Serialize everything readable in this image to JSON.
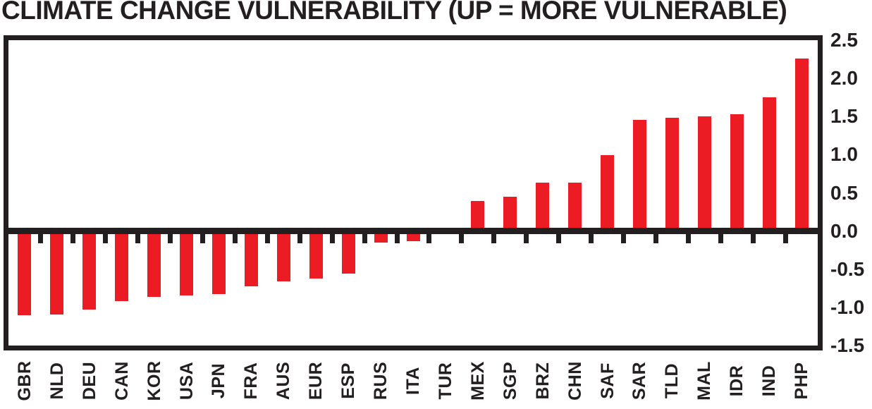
{
  "colors": {
    "bar": "#EC1C24",
    "axis": "#231F20",
    "background": "#FFFFFF"
  },
  "chart_data": {
    "type": "bar",
    "title": "CLIMATE CHANGE VULNERABILITY (UP = MORE VULNERABLE)",
    "categories": [
      "GBR",
      "NLD",
      "DEU",
      "CAN",
      "KOR",
      "USA",
      "JPN",
      "FRA",
      "AUS",
      "EUR",
      "ESP",
      "RUS",
      "ITA",
      "TUR",
      "MEX",
      "SGP",
      "BRZ",
      "CHN",
      "SAF",
      "SAR",
      "TLD",
      "MAL",
      "IDR",
      "IND",
      "PHP"
    ],
    "values": [
      -1.1,
      -1.09,
      -1.03,
      -0.92,
      -0.86,
      -0.84,
      -0.83,
      -0.72,
      -0.66,
      -0.62,
      -0.56,
      -0.15,
      -0.13,
      0.0,
      0.39,
      0.45,
      0.63,
      0.63,
      0.99,
      1.46,
      1.48,
      1.5,
      1.53,
      1.75,
      2.26
    ],
    "xlabel": "",
    "ylabel": "",
    "ylim": [
      -1.5,
      2.5
    ],
    "yticks": [
      2.5,
      2.0,
      1.5,
      1.0,
      0.5,
      0.0,
      -0.5,
      -1.0,
      -1.5
    ],
    "y_axis_side": "right",
    "grid": false,
    "legend": false,
    "zero_line": true,
    "bar_color": "#EC1C24"
  }
}
